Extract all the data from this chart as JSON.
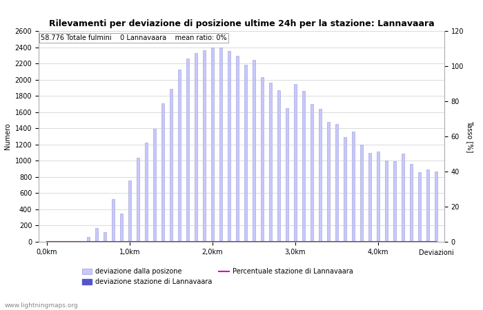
{
  "title": "Rilevamenti per deviazione di posizione ultime 24h per la stazione: Lannavaara",
  "subtitle": "58.776 Totale fulmini    0 Lannavaara    mean ratio: 0%",
  "xlabel": "Deviazioni",
  "ylabel_left": "Numero",
  "ylabel_right": "Tasso [%]",
  "watermark": "www.lightningmaps.org",
  "bar_values": [
    0,
    0,
    0,
    0,
    0,
    60,
    170,
    120,
    530,
    350,
    760,
    1040,
    1220,
    1390,
    1710,
    1890,
    2120,
    2260,
    2330,
    2360,
    2400,
    2400,
    2350,
    2290,
    2180,
    2240,
    2030,
    1960,
    1870,
    1650,
    1950,
    1860,
    1700,
    1640,
    1480,
    1450,
    1290,
    1360,
    1200,
    1100,
    1110,
    1000,
    990,
    1090,
    960,
    860,
    890,
    870
  ],
  "station_bar_values": [
    0,
    0,
    0,
    0,
    0,
    0,
    0,
    0,
    0,
    0,
    0,
    0,
    0,
    0,
    0,
    0,
    0,
    0,
    0,
    0,
    0,
    0,
    0,
    0,
    0,
    0,
    0,
    0,
    0,
    0,
    0,
    0,
    0,
    0,
    0,
    0,
    0,
    0,
    0,
    0,
    0,
    0,
    0,
    0,
    0,
    0,
    0,
    0
  ],
  "ratio_values": [
    0,
    0,
    0,
    0,
    0,
    0,
    0,
    0,
    0,
    0,
    0,
    0,
    0,
    0,
    0,
    0,
    0,
    0,
    0,
    0,
    0,
    0,
    0,
    0,
    0,
    0,
    0,
    0,
    0,
    0,
    0,
    0,
    0,
    0,
    0,
    0,
    0,
    0,
    0,
    0,
    0,
    0,
    0,
    0,
    0,
    0,
    0,
    0
  ],
  "x_tick_positions": [
    0,
    10,
    20,
    30,
    40
  ],
  "x_tick_labels": [
    "0,0km",
    "1,0km",
    "2,0km",
    "3,0km",
    "4,0km"
  ],
  "ylim_left": [
    0,
    2600
  ],
  "ylim_right": [
    0,
    120
  ],
  "yticks_left": [
    0,
    200,
    400,
    600,
    800,
    1000,
    1200,
    1400,
    1600,
    1800,
    2000,
    2200,
    2400,
    2600
  ],
  "yticks_right": [
    0,
    20,
    40,
    60,
    80,
    100,
    120
  ],
  "bar_color": "#c8c8ff",
  "bar_edge_color": "#9898cc",
  "station_bar_color": "#5555cc",
  "ratio_line_color": "#cc00cc",
  "bg_color": "#ffffff",
  "grid_color": "#cccccc",
  "title_fontsize": 9,
  "subtitle_fontsize": 7,
  "axis_fontsize": 7,
  "tick_fontsize": 7,
  "legend_fontsize": 7,
  "n_bars": 48,
  "bar_width": 0.3,
  "legend_label_bars": "deviazione dalla posizone",
  "legend_label_station": "deviazione stazione di Lannavaara",
  "legend_label_ratio": "Percentuale stazione di Lannavaara"
}
